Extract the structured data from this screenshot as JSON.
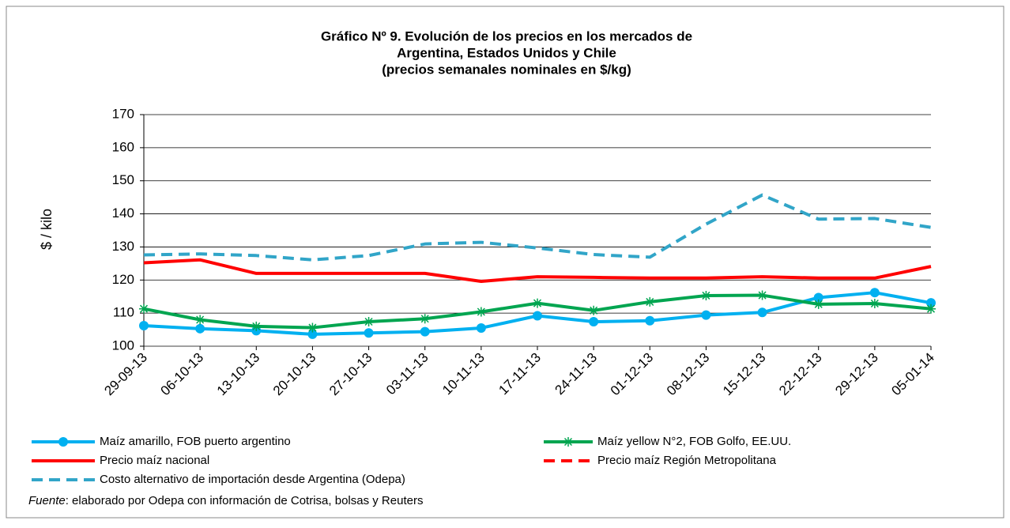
{
  "chart_data": {
    "type": "line",
    "title": [
      "Gráfico Nº 9. Evolución de los precios en los mercados de",
      "Argentina, Estados Unidos y Chile",
      "(precios semanales nominales en $/kg)"
    ],
    "y_label": "$ / kilo",
    "categories": [
      "29-09-13",
      "06-10-13",
      "13-10-13",
      "20-10-13",
      "27-10-13",
      "03-11-13",
      "10-11-13",
      "17-11-13",
      "24-11-13",
      "01-12-13",
      "08-12-13",
      "15-12-13",
      "22-12-13",
      "29-12-13",
      "05-01-14"
    ],
    "ylim": [
      100,
      170
    ],
    "yticks": [
      100,
      110,
      120,
      130,
      140,
      150,
      160,
      170
    ],
    "grid": true,
    "series": [
      {
        "name": "Maíz amarillo, FOB puerto argentino",
        "color": "#00b0f0",
        "dash": false,
        "marker": "circle",
        "values": [
          106.2,
          105.3,
          104.7,
          103.6,
          104.0,
          104.4,
          105.5,
          109.2,
          107.4,
          107.7,
          109.4,
          110.2,
          114.7,
          116.2,
          113.1
        ]
      },
      {
        "name": "Maíz yellow N°2, FOB Golfo, EE.UU.",
        "color": "#00a550",
        "dash": false,
        "marker": "star",
        "values": [
          111.3,
          108.0,
          106.0,
          105.6,
          107.4,
          108.3,
          110.4,
          113.0,
          110.8,
          113.4,
          115.3,
          115.4,
          112.7,
          112.9,
          111.3
        ]
      },
      {
        "name": "Precio maíz nacional",
        "color": "#ff0000",
        "dash": false,
        "marker": "none",
        "values": [
          125.2,
          126.1,
          122.0,
          122.0,
          122.0,
          122.0,
          119.6,
          121.0,
          120.8,
          120.6,
          120.6,
          121.0,
          120.6,
          120.6,
          124.1
        ]
      },
      {
        "name": "Precio maíz Región Metropolitana",
        "color": "#ff0000",
        "dash": true,
        "marker": "none",
        "values": [
          null,
          null,
          null,
          null,
          null,
          null,
          null,
          null,
          null,
          null,
          null,
          null,
          null,
          null,
          null
        ]
      },
      {
        "name": "Costo alternativo de importación desde Argentina (Odepa)",
        "color": "#31a5c8",
        "dash": true,
        "marker": "none",
        "values": [
          127.6,
          127.9,
          127.4,
          126.1,
          127.4,
          130.9,
          131.4,
          129.7,
          127.7,
          126.9,
          136.9,
          145.7,
          138.4,
          138.6,
          135.9
        ]
      }
    ],
    "source_label": "Fuente",
    "source_text": ": elaborado por Odepa con información de Cotrisa, bolsas y Reuters"
  }
}
